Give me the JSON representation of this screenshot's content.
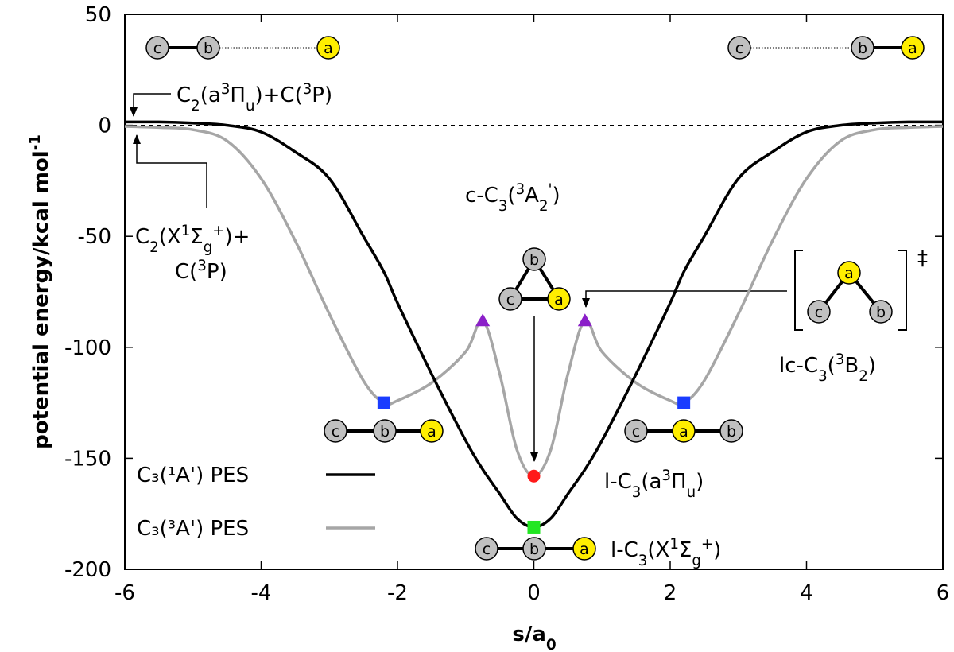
{
  "chart_data": {
    "type": "line",
    "xlabel": [
      {
        "t": "s/a"
      },
      {
        "t": "0",
        "s": "sub"
      }
    ],
    "ylabel": [
      {
        "t": "potential energy/kcal mol"
      },
      {
        "t": "-1",
        "s": "sup"
      }
    ],
    "x": [
      -6,
      -5.5,
      -5,
      -4.5,
      -4,
      -3.5,
      -3,
      -2.5,
      -2.2,
      -2,
      -1.5,
      -1,
      -0.75,
      -0.5,
      -0.25,
      0,
      0.25,
      0.5,
      0.75,
      1,
      1.5,
      2,
      2.2,
      2.5,
      3,
      3.5,
      4,
      4.5,
      5,
      5.5,
      6
    ],
    "series": [
      {
        "name": "C₃(¹A') PES",
        "color": "#000000",
        "values": [
          1.5,
          1.5,
          1,
          0,
          -3,
          -12,
          -24,
          -50,
          -66,
          -80,
          -112,
          -142,
          -155,
          -166,
          -177,
          -181,
          -177,
          -166,
          -155,
          -142,
          -112,
          -80,
          -66,
          -50,
          -24,
          -12,
          -3,
          0,
          1,
          1.5,
          1.5
        ]
      },
      {
        "name": "C₃(³A') PES",
        "color": "#a6a6a6",
        "values": [
          -0.5,
          -1,
          -2,
          -7,
          -24,
          -52,
          -85,
          -115,
          -125,
          -124,
          -116,
          -102,
          -88,
          -112,
          -146,
          -158,
          -146,
          -112,
          -88,
          -102,
          -116,
          -124,
          -125,
          -115,
          -85,
          -52,
          -24,
          -7,
          -2,
          -1,
          -0.5
        ]
      }
    ],
    "xlim": [
      -6,
      6
    ],
    "xticks": [
      -6,
      -4,
      -2,
      0,
      2,
      4,
      6
    ],
    "ylim": [
      -200,
      50
    ],
    "yticks": [
      -200,
      -150,
      -100,
      -50,
      0,
      50
    ],
    "reference_line": 0,
    "points": [
      {
        "x": -2.2,
        "y": -125,
        "color": "#1a3cff",
        "shape": "square"
      },
      {
        "x": 2.2,
        "y": -125,
        "color": "#1a3cff",
        "shape": "square"
      },
      {
        "x": -0.75,
        "y": -88,
        "color": "#8b1fc9",
        "shape": "triangle"
      },
      {
        "x": 0.75,
        "y": -88,
        "color": "#8b1fc9",
        "shape": "triangle"
      },
      {
        "x": 0,
        "y": -158,
        "color": "#ff1a1a",
        "shape": "circle"
      },
      {
        "x": 0,
        "y": -181,
        "color": "#22e622",
        "shape": "square"
      }
    ],
    "legend": "lower left",
    "annotations": [
      {
        "parts": [
          {
            "t": "C"
          },
          {
            "t": "2",
            "s": "sub"
          },
          {
            "t": "(a"
          },
          {
            "t": "3",
            "s": "sup"
          },
          {
            "t": "Π"
          },
          {
            "t": "u",
            "s": "sub"
          },
          {
            "t": ")+C("
          },
          {
            "t": "3",
            "s": "sup"
          },
          {
            "t": "P)"
          }
        ]
      },
      {
        "parts": [
          {
            "t": "C"
          },
          {
            "t": "2",
            "s": "sub"
          },
          {
            "t": "(X"
          },
          {
            "t": "1",
            "s": "sup"
          },
          {
            "t": "Σ"
          },
          {
            "t": "g",
            "s": "sub"
          },
          {
            "t": "+",
            "s": "sup"
          },
          {
            "t": ")+"
          }
        ]
      },
      {
        "parts": [
          {
            "t": "C("
          },
          {
            "t": "3",
            "s": "sup"
          },
          {
            "t": "P)"
          }
        ]
      },
      {
        "parts": [
          {
            "t": "c-C"
          },
          {
            "t": "3",
            "s": "sub"
          },
          {
            "t": "("
          },
          {
            "t": "3",
            "s": "sup"
          },
          {
            "t": "A"
          },
          {
            "t": "2",
            "s": "sub"
          },
          {
            "t": "'",
            "s": "sup"
          },
          {
            "t": ")"
          }
        ]
      },
      {
        "parts": [
          {
            "t": "lc-C"
          },
          {
            "t": "3",
            "s": "sub"
          },
          {
            "t": "("
          },
          {
            "t": "3",
            "s": "sup"
          },
          {
            "t": "B"
          },
          {
            "t": "2",
            "s": "sub"
          },
          {
            "t": ")"
          }
        ]
      },
      {
        "parts": [
          {
            "t": "l-C"
          },
          {
            "t": "3",
            "s": "sub"
          },
          {
            "t": "(a"
          },
          {
            "t": "3",
            "s": "sup"
          },
          {
            "t": "Π"
          },
          {
            "t": "u",
            "s": "sub"
          },
          {
            "t": ")"
          }
        ]
      },
      {
        "parts": [
          {
            "t": "l-C"
          },
          {
            "t": "3",
            "s": "sub"
          },
          {
            "t": "(X"
          },
          {
            "t": "1",
            "s": "sup"
          },
          {
            "t": "Σ"
          },
          {
            "t": "g",
            "s": "sub"
          },
          {
            "t": "+",
            "s": "sup"
          },
          {
            "t": ")"
          }
        ]
      }
    ],
    "molecules": [
      {
        "atoms": [
          {
            "label": "c",
            "color": "#c0c0c0"
          },
          {
            "label": "b",
            "color": "#c0c0c0"
          },
          {
            "label": "a",
            "color": "#ffee00"
          }
        ]
      },
      {
        "atoms": [
          {
            "label": "c",
            "color": "#c0c0c0"
          },
          {
            "label": "b",
            "color": "#c0c0c0"
          },
          {
            "label": "a",
            "color": "#ffee00"
          }
        ]
      },
      {
        "atoms": [
          {
            "label": "b",
            "color": "#c0c0c0"
          },
          {
            "label": "c",
            "color": "#c0c0c0"
          },
          {
            "label": "a",
            "color": "#ffee00"
          }
        ]
      },
      {
        "atoms": [
          {
            "label": "a",
            "color": "#ffee00"
          },
          {
            "label": "c",
            "color": "#c0c0c0"
          },
          {
            "label": "b",
            "color": "#c0c0c0"
          }
        ],
        "mark": "‡"
      },
      {
        "atoms": [
          {
            "label": "c",
            "color": "#c0c0c0"
          },
          {
            "label": "b",
            "color": "#c0c0c0"
          },
          {
            "label": "a",
            "color": "#ffee00"
          }
        ]
      },
      {
        "atoms": [
          {
            "label": "c",
            "color": "#c0c0c0"
          },
          {
            "label": "a",
            "color": "#ffee00"
          },
          {
            "label": "b",
            "color": "#c0c0c0"
          }
        ]
      },
      {
        "atoms": [
          {
            "label": "c",
            "color": "#c0c0c0"
          },
          {
            "label": "b",
            "color": "#c0c0c0"
          },
          {
            "label": "a",
            "color": "#ffee00"
          }
        ]
      }
    ]
  }
}
